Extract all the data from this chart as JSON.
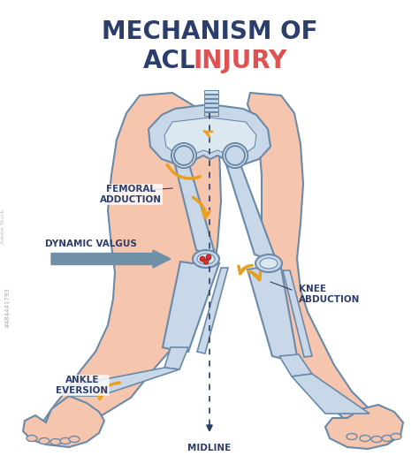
{
  "title_line1": "MECHANISM OF",
  "title_line2_part1": "ACL",
  "title_line2_part2": "INJURY",
  "title_color_main": "#2c3e6b",
  "title_color_acl": "#2c3e6b",
  "title_color_injury": "#e05252",
  "background_color": "#ffffff",
  "skin_color": "#f5c5ae",
  "bone_fill": "#c8d8e8",
  "bone_stroke": "#6a8aaa",
  "label_color": "#2c3e6b",
  "arrow_color": "#e8a020",
  "dynamic_valgus_arrow_color": "#7090a8",
  "midline_color": "#2c3e6b",
  "knee_injury_color": "#cc3333",
  "labels": {
    "femoral_adduction": "FEMORAL\nADDUCTION",
    "dynamic_valgus": "DYNAMIC VALGUS",
    "knee_abduction": "KNEE\nABDUCTION",
    "ankle_eversion": "ANKLE\nEVERSION",
    "midline": "MIDLINE"
  },
  "watermark": "#484441793",
  "fig_width": 4.74,
  "fig_height": 5.16,
  "dpi": 100
}
